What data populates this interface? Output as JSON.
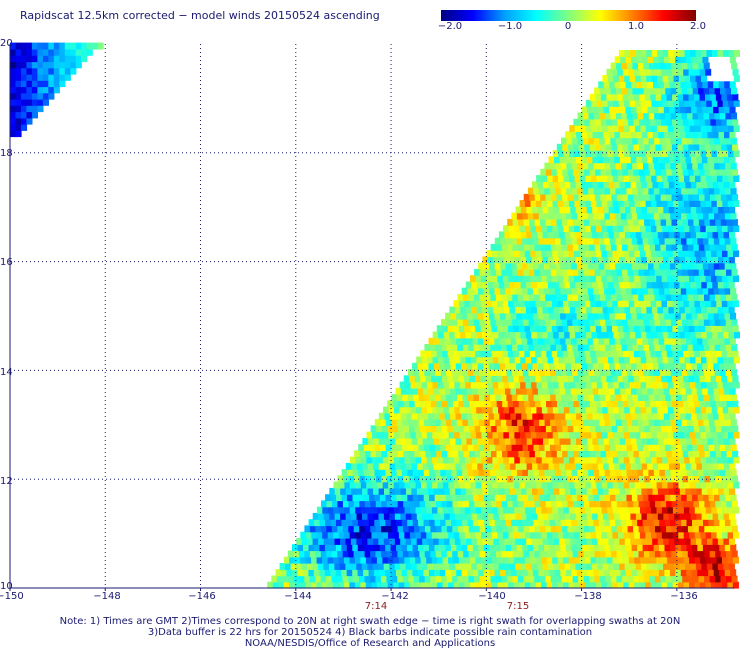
{
  "title": "Rapidscat 12.5km corrected − model winds 20150524 ascending",
  "colorbar": {
    "labels": [
      "−2.0",
      "−1.0",
      "0",
      "1.0",
      "2.0"
    ],
    "stops": [
      "#000080",
      "#0000ff",
      "#00a0ff",
      "#00ffff",
      "#80ff80",
      "#ffff00",
      "#ff8000",
      "#ff0000",
      "#800000"
    ],
    "range": [
      -2.0,
      2.0
    ]
  },
  "axes": {
    "y_ticks": [
      "20",
      "18",
      "16",
      "14",
      "12",
      "10"
    ],
    "x_ticks": [
      "−150",
      "−148",
      "−146",
      "−144",
      "−142",
      "−140",
      "−138",
      "−136"
    ],
    "lon_range": [
      -150,
      -134.8
    ],
    "lat_range": [
      10,
      20
    ],
    "grid": true
  },
  "times": [
    {
      "label": "7:14",
      "lon": -142
    },
    {
      "label": "7:15",
      "lon": -140
    }
  ],
  "notes": [
    "Note: 1) Times are GMT 2)Times correspond to 20N at right swath edge − time is right swath for overlapping swaths at 20N",
    "3)Data buffer is 22 hrs for 20150524 4) Black barbs indicate possible rain contamination",
    "NOAA/NESDIS/Office of Research and Applications"
  ]
}
